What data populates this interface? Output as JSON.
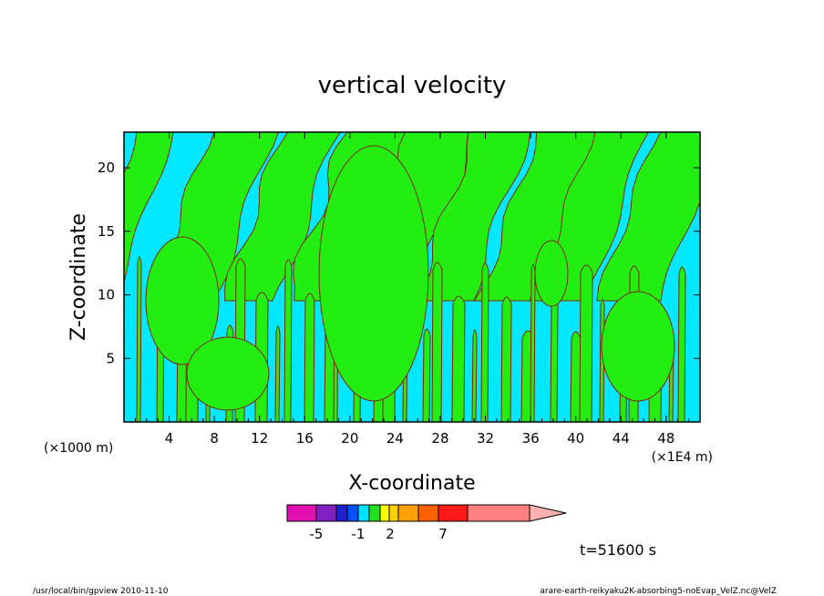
{
  "chart_data": {
    "type": "heatmap",
    "title": "vertical velocity",
    "xlabel": "X-coordinate",
    "ylabel": "Z-coordinate",
    "x_unit_left": "(×1000 m)",
    "x_unit_right": "(×1E4 m)",
    "xlim": [
      0,
      51
    ],
    "ylim": [
      0,
      22.8
    ],
    "xticks": [
      4,
      8,
      12,
      16,
      20,
      24,
      28,
      32,
      36,
      40,
      44,
      48
    ],
    "yticks": [
      5,
      10,
      15,
      20
    ],
    "time_label": "t=51600 s",
    "colorbar": {
      "levels": [
        {
          "color": "#e010b0"
        },
        {
          "color": "#8020c0"
        },
        {
          "color": "#2020d0"
        },
        {
          "color": "#0050ff"
        },
        {
          "color": "#00e0ff"
        },
        {
          "color": "#20e020"
        },
        {
          "color": "#ffff00"
        },
        {
          "color": "#ffd000"
        },
        {
          "color": "#ffa000"
        },
        {
          "color": "#ff6000"
        },
        {
          "color": "#ff1a1a"
        },
        {
          "color": "#ff8080"
        },
        {
          "color": "#ffb0b0"
        }
      ],
      "labels": [
        "-5",
        "-1",
        "2",
        "7"
      ]
    },
    "field_colors": {
      "negative": "#00e8ff",
      "positive": "#22ee11",
      "contour": "#7a2a00"
    }
  },
  "footer": {
    "left": "/usr/local/bin/gpview   2010-11-10",
    "right": "arare-earth-reikyaku2K-absorbing5-noEvap_VelZ.nc@VelZ"
  }
}
